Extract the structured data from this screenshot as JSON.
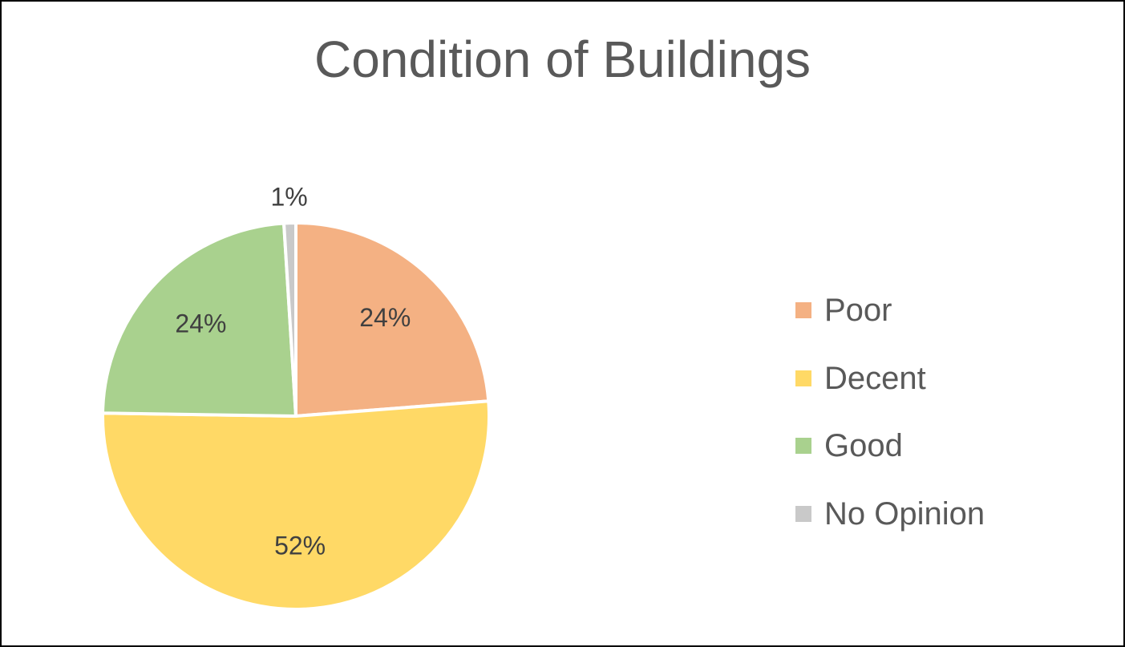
{
  "chart_data": {
    "type": "pie",
    "title": "Condition of Buildings",
    "categories": [
      "Poor",
      "Decent",
      "Good",
      "No Opinion"
    ],
    "values": [
      24,
      52,
      24,
      1
    ],
    "data_labels": [
      "24%",
      "52%",
      "24%",
      "1%"
    ],
    "colors": [
      "#F4B183",
      "#FFD966",
      "#A9D18E",
      "#C9C9C9"
    ],
    "legend_position": "right"
  }
}
